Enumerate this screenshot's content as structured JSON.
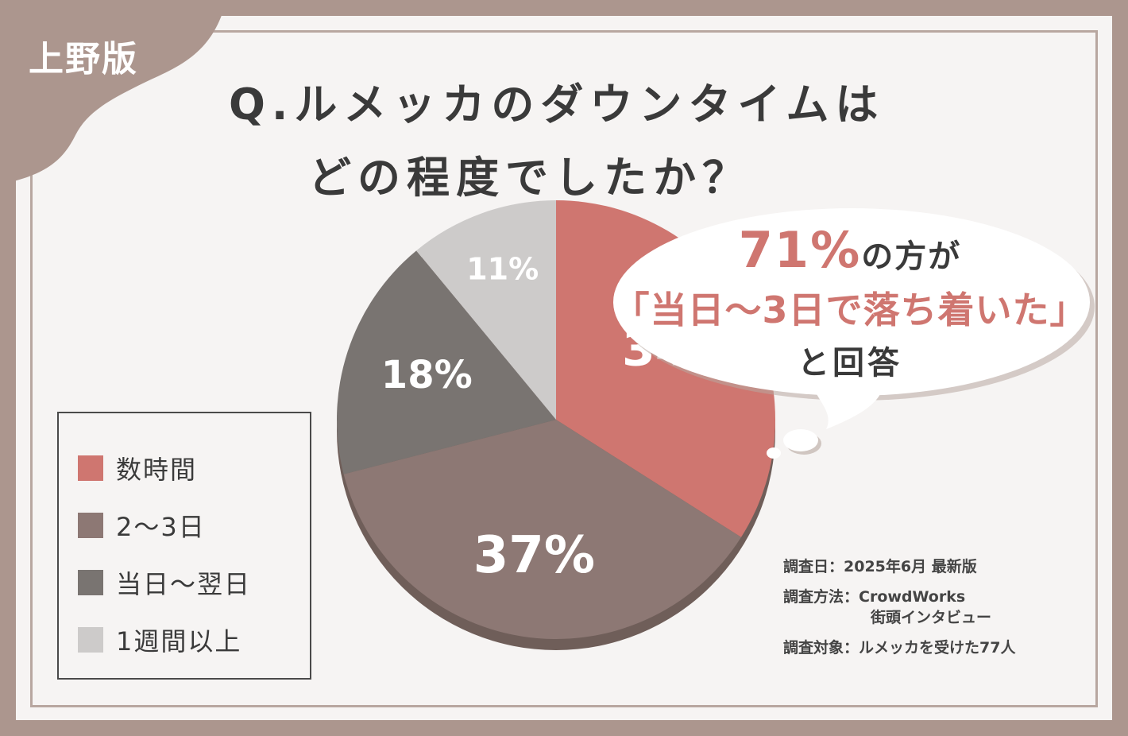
{
  "badge": "上野版",
  "title": {
    "line1": "Q.ルメッカのダウンタイムは",
    "line2": "どの程度でしたか？"
  },
  "callout": {
    "percent": "71%",
    "suffix": "の方が",
    "quote": "「当日〜3日で落ち着いた」",
    "answer": "と回答"
  },
  "chart_data": {
    "type": "pie",
    "categories": [
      "数時間",
      "2〜3日",
      "当日〜翌日",
      "1週間以上"
    ],
    "values": [
      34,
      37,
      18,
      11
    ],
    "labels": [
      "34%",
      "37%",
      "18%",
      "11%"
    ],
    "colors": [
      "#cf7670",
      "#8d7874",
      "#797471",
      "#cdcbca"
    ],
    "legend_position": "left"
  },
  "legend": [
    {
      "label": "数時間",
      "color": "#cf7670"
    },
    {
      "label": "2〜3日",
      "color": "#8d7874"
    },
    {
      "label": "当日〜翌日",
      "color": "#797471"
    },
    {
      "label": "1週間以上",
      "color": "#cdcbca"
    }
  ],
  "meta": {
    "date": "調査日：2025年6月 最新版",
    "method_line1": "調査方法：CrowdWorks",
    "method_line2": "街頭インタビュー",
    "target": "調査対象：ルメッカを受けた77人"
  }
}
